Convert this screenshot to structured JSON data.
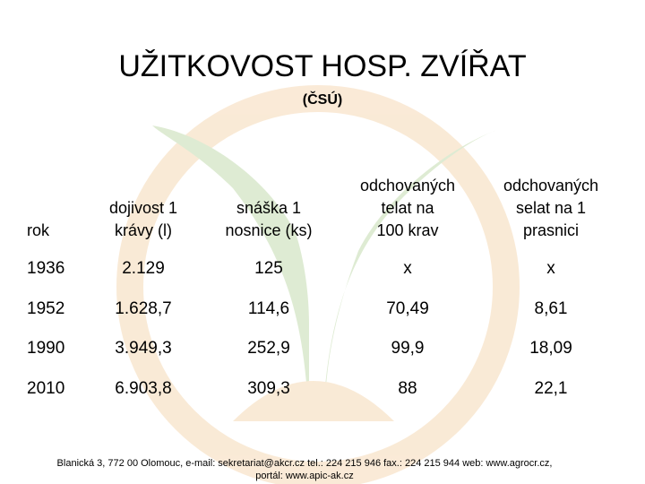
{
  "header": {
    "title": "UŽITKOVOST  HOSP.  ZVÍŘAT",
    "subtitle": "(ČSÚ)"
  },
  "table": {
    "columns": [
      [
        "rok"
      ],
      [
        "dojivost 1",
        "krávy (l)"
      ],
      [
        "snáška 1",
        "nosnice (ks)"
      ],
      [
        "odchovaných",
        "telat na",
        "100 krav"
      ],
      [
        "odchovaných",
        "selat na 1",
        "prasnici"
      ]
    ],
    "rows": [
      [
        "1936",
        "2.129",
        "125",
        "x",
        "x"
      ],
      [
        "1952",
        "1.628,7",
        "114,6",
        "70,49",
        "8,61"
      ],
      [
        "1990",
        "3.949,3",
        "252,9",
        "99,9",
        "18,09"
      ],
      [
        "2010",
        "6.903,8",
        "309,3",
        "88",
        "22,1"
      ]
    ]
  },
  "footer": [
    "Blanická 3, 772 00 Olomouc, e-mail: sekretariat@akcr.cz tel.: 224 215 946 fax.: 224 215 944 web: www.agrocr.cz,",
    "portál: www.apic-ak.cz"
  ]
}
